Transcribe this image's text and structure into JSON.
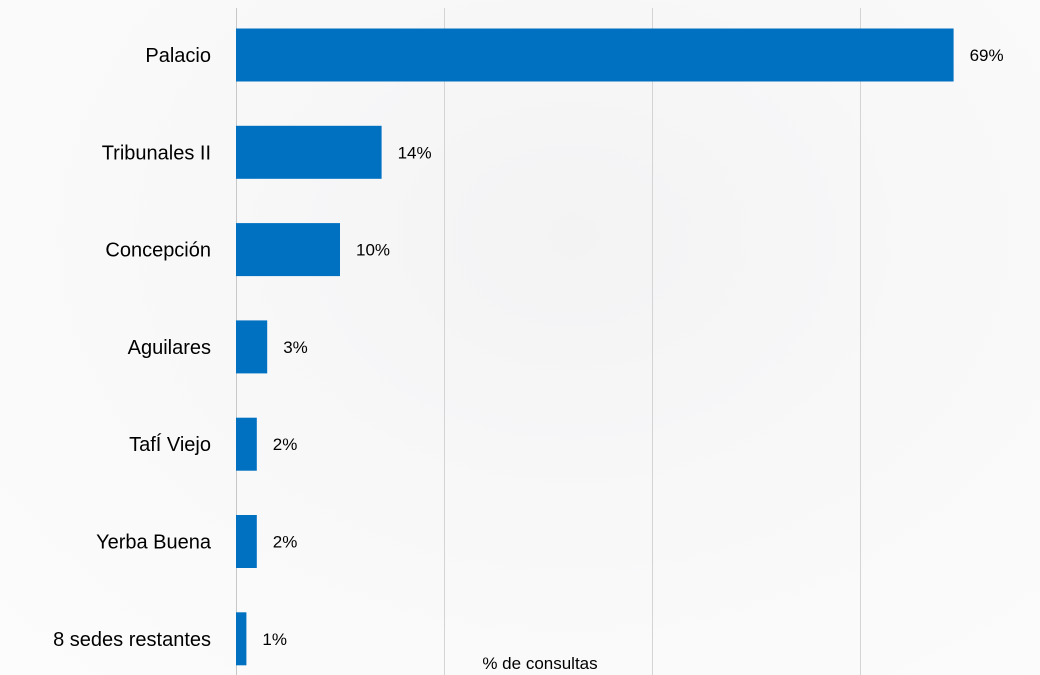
{
  "chart_data": {
    "type": "bar",
    "orientation": "horizontal",
    "categories": [
      "Palacio",
      "Tribunales II",
      "Concepción",
      "Aguilares",
      "TafÍ Viejo",
      "Yerba Buena",
      "8 sedes restantes"
    ],
    "values": [
      69,
      14,
      10,
      3,
      2,
      2,
      1
    ],
    "value_labels": [
      "69%",
      "14%",
      "10%",
      "3%",
      "2%",
      "2%",
      "1%"
    ],
    "xlabel": "% de consultas",
    "xlim": [
      0,
      80
    ],
    "grid": true,
    "bar_color": "#0070c0"
  }
}
